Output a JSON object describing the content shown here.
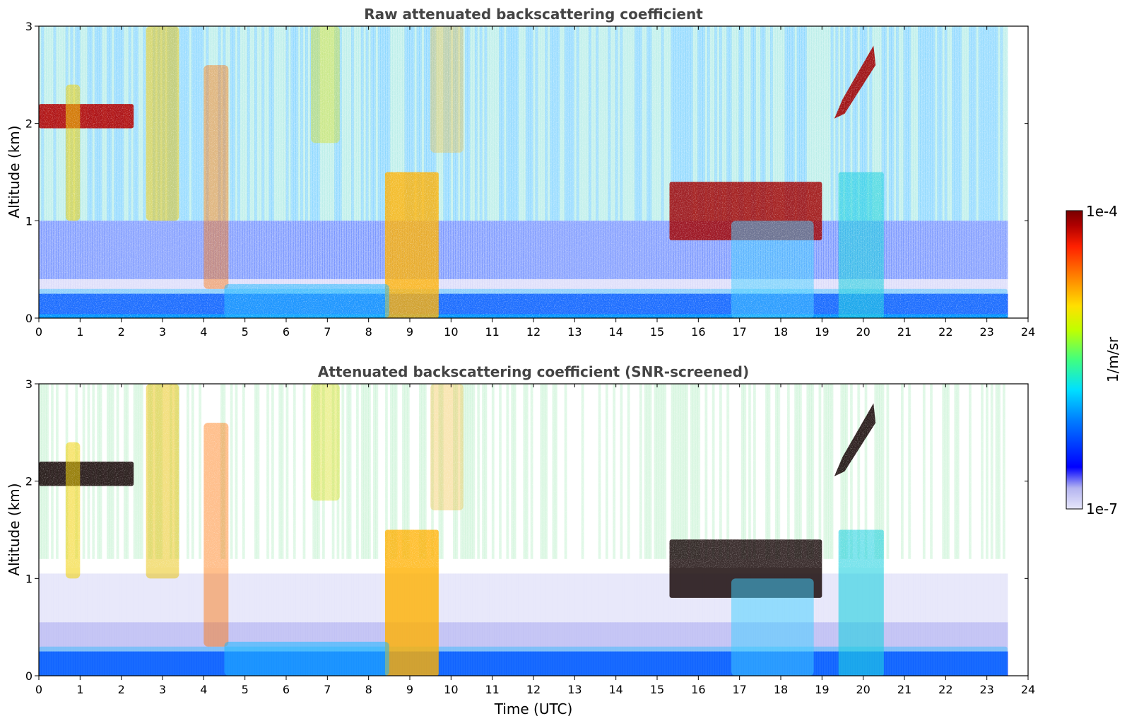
{
  "chart_data": [
    {
      "type": "heatmap",
      "title": "Raw attenuated backscattering coefficient",
      "xlabel": "",
      "ylabel": "Altitude (km)",
      "xlim": [
        0,
        24
      ],
      "ylim": [
        0,
        3
      ],
      "xticks": [
        "0",
        "1",
        "2",
        "3",
        "4",
        "5",
        "6",
        "7",
        "8",
        "9",
        "10",
        "11",
        "12",
        "13",
        "14",
        "15",
        "16",
        "17",
        "18",
        "19",
        "20",
        "21",
        "22",
        "23",
        "24"
      ],
      "yticks": [
        "0",
        "1",
        "2",
        "3"
      ],
      "data_extent_hours": [
        0,
        23.5
      ],
      "features": [
        {
          "name": "surface aerosol layer",
          "time_range": [
            0,
            23.5
          ],
          "altitude_km": [
            0,
            0.3
          ]
        },
        {
          "name": "mid-level cloud",
          "time_range": [
            0,
            2.3
          ],
          "altitude_km": [
            1.95,
            2.2
          ]
        },
        {
          "name": "precipitation shaft",
          "time_range": [
            8.4,
            9.7
          ],
          "altitude_km": [
            0,
            1.5
          ]
        },
        {
          "name": "cloud layer",
          "time_range": [
            15.3,
            19.0
          ],
          "altitude_km": [
            0.8,
            1.4
          ]
        },
        {
          "name": "rising cloud",
          "time_range": [
            19.3,
            20.3
          ],
          "altitude_km": [
            2.0,
            2.8
          ]
        },
        {
          "name": "aerosol plume",
          "time_range": [
            19.4,
            20.5
          ],
          "altitude_km": [
            0,
            1.5
          ]
        }
      ]
    },
    {
      "type": "heatmap",
      "title": "Attenuated backscattering coefficient (SNR-screened)",
      "xlabel": "Time (UTC)",
      "ylabel": "Altitude (km)",
      "xlim": [
        0,
        24
      ],
      "ylim": [
        0,
        3
      ],
      "xticks": [
        "0",
        "1",
        "2",
        "3",
        "4",
        "5",
        "6",
        "7",
        "8",
        "9",
        "10",
        "11",
        "12",
        "13",
        "14",
        "15",
        "16",
        "17",
        "18",
        "19",
        "20",
        "21",
        "22",
        "23",
        "24"
      ],
      "yticks": [
        "0",
        "1",
        "2",
        "3"
      ],
      "data_extent_hours": [
        0,
        23.5
      ]
    }
  ],
  "colorbar": {
    "label": "1/m/sr",
    "max_label": "1e-4",
    "min_label": "1e-7",
    "colormap": [
      "#e6e6fa",
      "#b4b4f0",
      "#0000ff",
      "#0080ff",
      "#00e0ff",
      "#40ff80",
      "#c0ff00",
      "#ffe000",
      "#ff8000",
      "#ff2000",
      "#b00000",
      "#780000"
    ]
  }
}
